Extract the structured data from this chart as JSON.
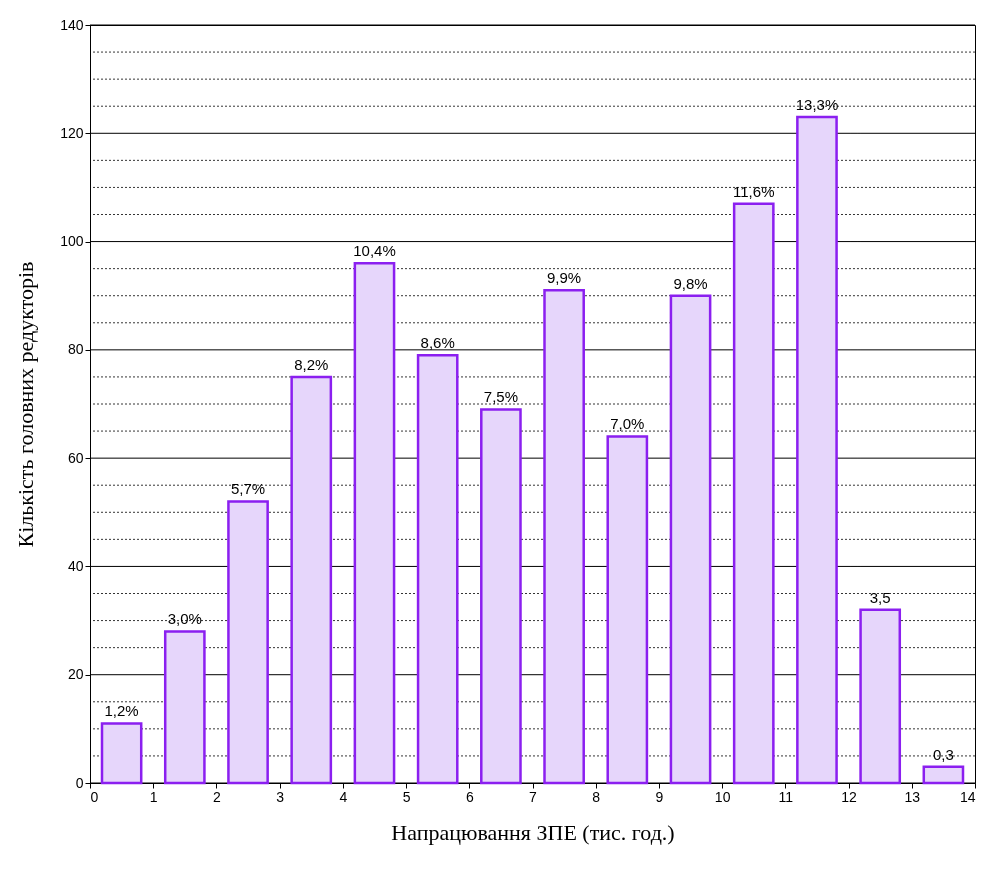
{
  "chart_data": {
    "type": "histogram",
    "xlabel": "Напрацювання ЗПЕ (тис. год.)",
    "ylabel": "Кількість головних редукторів",
    "bins": [
      0,
      1,
      2,
      3,
      4,
      5,
      6,
      7,
      8,
      9,
      10,
      11,
      12,
      13,
      14
    ],
    "values": [
      11,
      28,
      52,
      75,
      96,
      79,
      69,
      91,
      64,
      90,
      107,
      123,
      32,
      3
    ],
    "annotations": [
      {
        "text": "1,2%",
        "x": 0.5,
        "y": 11
      },
      {
        "text": "3,0%",
        "x": 1.5,
        "y": 28
      },
      {
        "text": "5,7%",
        "x": 2.5,
        "y": 52
      },
      {
        "text": "8,2%",
        "x": 3.5,
        "y": 75
      },
      {
        "text": "10,4%",
        "x": 4.5,
        "y": 96
      },
      {
        "text": "8,6%",
        "x": 5.5,
        "y": 79
      },
      {
        "text": "7,5%",
        "x": 6.5,
        "y": 69
      },
      {
        "text": "9,9%",
        "x": 7.5,
        "y": 91
      },
      {
        "text": "7,0%",
        "x": 8.5,
        "y": 64
      },
      {
        "text": "9,8%",
        "x": 9.5,
        "y": 90
      },
      {
        "text": "11,6%",
        "x": 10.5,
        "y": 107
      },
      {
        "text": "13,3%",
        "x": 11.5,
        "y": 123
      },
      {
        "text": "3,5",
        "x": 12.5,
        "y": 32
      },
      {
        "text": "0,3",
        "x": 13.5,
        "y": 3
      }
    ],
    "color": "#8b1ff0",
    "xlim": [
      0,
      14
    ],
    "xticks": [
      0,
      1,
      2,
      3,
      4,
      5,
      6,
      7,
      8,
      9,
      10,
      11,
      12,
      13,
      14
    ],
    "ylim": [
      0,
      140
    ],
    "yticks": [
      0,
      {
        "value": 5,
        "label": null
      },
      {
        "value": 10,
        "label": null
      },
      {
        "value": 15,
        "label": null
      },
      20,
      {
        "value": 25,
        "label": null
      },
      {
        "value": 30,
        "label": null
      },
      {
        "value": 35,
        "label": null
      },
      40,
      {
        "value": 45,
        "label": null
      },
      {
        "value": 50,
        "label": null
      },
      {
        "value": 55,
        "label": null
      },
      60,
      {
        "value": 65,
        "label": null
      },
      {
        "value": 70,
        "label": null
      },
      {
        "value": 75,
        "label": null
      },
      80,
      {
        "value": 85,
        "label": null
      },
      {
        "value": 90,
        "label": null
      },
      {
        "value": 95,
        "label": null
      },
      100,
      {
        "value": 105,
        "label": null
      },
      {
        "value": 110,
        "label": null
      },
      {
        "value": 115,
        "label": null
      },
      120,
      {
        "value": 125,
        "label": null
      },
      {
        "value": 130,
        "label": null
      },
      {
        "value": 135,
        "label": null
      },
      140
    ],
    "grid": "y"
  }
}
